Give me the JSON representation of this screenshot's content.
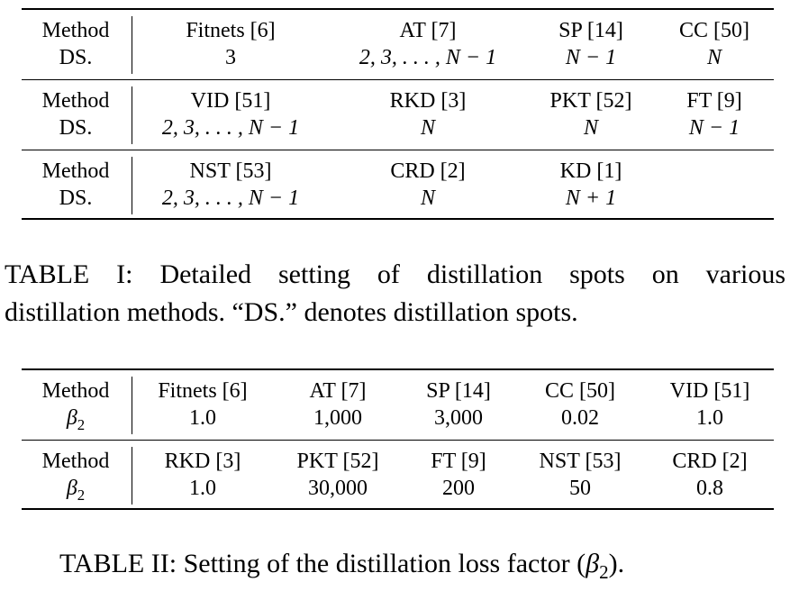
{
  "table1": {
    "row_label_method": "Method",
    "row_label_ds": "DS.",
    "groups": [
      {
        "cells": [
          {
            "method": "Fitnets [6]",
            "value": "3"
          },
          {
            "method": "AT [7]",
            "value": "2, 3, . . . , N − 1"
          },
          {
            "method": "SP [14]",
            "value": "N − 1"
          },
          {
            "method": "CC [50]",
            "value": "N"
          }
        ]
      },
      {
        "cells": [
          {
            "method": "VID [51]",
            "value": "2, 3, . . . , N − 1"
          },
          {
            "method": "RKD [3]",
            "value": "N"
          },
          {
            "method": "PKT [52]",
            "value": "N"
          },
          {
            "method": "FT [9]",
            "value": "N − 1"
          }
        ]
      },
      {
        "cells": [
          {
            "method": "NST [53]",
            "value": "2, 3, . . . , N − 1"
          },
          {
            "method": "CRD [2]",
            "value": "N"
          },
          {
            "method": "KD [1]",
            "value": "N + 1"
          }
        ]
      }
    ],
    "caption_line1": "TABLE I: Detailed setting of distillation spots on various",
    "caption_line2": "distillation methods. “DS.” denotes distillation spots."
  },
  "table2": {
    "row_label_method": "Method",
    "row_label_beta": "β",
    "row_label_beta_sub": "2",
    "groups": [
      {
        "cells": [
          {
            "method": "Fitnets [6]",
            "value": "1.0"
          },
          {
            "method": "AT [7]",
            "value": "1,000"
          },
          {
            "method": "SP [14]",
            "value": "3,000"
          },
          {
            "method": "CC [50]",
            "value": "0.02"
          },
          {
            "method": "VID [51]",
            "value": "1.0"
          }
        ]
      },
      {
        "cells": [
          {
            "method": "RKD [3]",
            "value": "1.0"
          },
          {
            "method": "PKT [52]",
            "value": "30,000"
          },
          {
            "method": "FT [9]",
            "value": "200"
          },
          {
            "method": "NST [53]",
            "value": "50"
          },
          {
            "method": "CRD [2]",
            "value": "0.8"
          }
        ]
      }
    ],
    "caption_prefix": "TABLE II: Setting of the distillation loss factor (",
    "caption_beta": "β",
    "caption_beta_sub": "2",
    "caption_suffix": ")."
  }
}
